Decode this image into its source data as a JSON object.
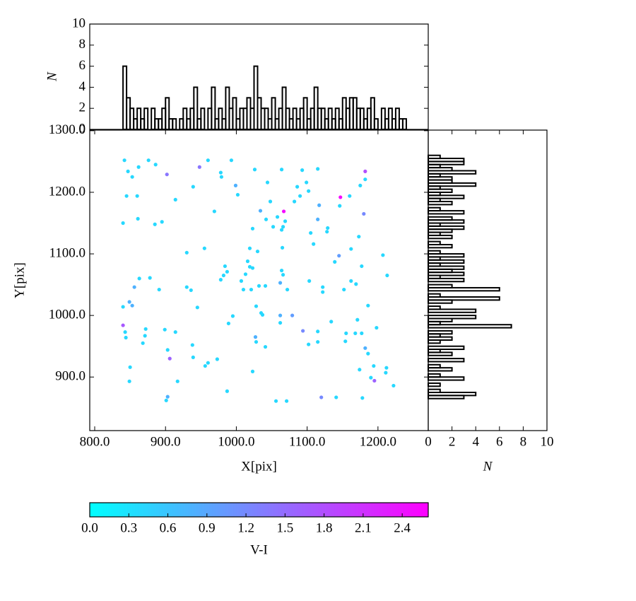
{
  "chart_data": [
    {
      "type": "scatter",
      "xlabel": "X[pix]",
      "ylabel": "Y[pix]",
      "xlim": [
        793,
        1271
      ],
      "ylim": [
        813,
        1301
      ],
      "xticks": [
        {
          "value": 800,
          "label": "800.0"
        },
        {
          "value": 900,
          "label": "900.0"
        },
        {
          "value": 1000,
          "label": "1000.0"
        },
        {
          "value": 1100,
          "label": "1100.0"
        },
        {
          "value": 1200,
          "label": "1200.0"
        }
      ],
      "yticks": [
        {
          "value": 900,
          "label": "900.0"
        },
        {
          "value": 1000,
          "label": "1000.0"
        },
        {
          "value": 1100,
          "label": "1100.0"
        },
        {
          "value": 1200,
          "label": "1200.0"
        },
        {
          "value": 1300,
          "label": "1300.0"
        }
      ],
      "x": [
        842,
        847,
        853,
        862,
        876,
        886,
        902,
        845,
        860,
        914,
        840,
        861,
        885,
        895,
        948,
        960,
        978,
        979,
        993,
        1026,
        999,
        939,
        1002,
        969,
        1044,
        1064,
        1093,
        1115,
        1086,
        1099,
        1090,
        1102,
        1048,
        1034,
        1067,
        1052,
        1069,
        1066,
        1064,
        1023,
        1042,
        1058,
        1082,
        1117,
        1147,
        1146,
        1160,
        1175,
        1182,
        1182,
        1115,
        1129,
        1128,
        1105,
        1180,
        1173,
        1109,
        955,
        930,
        1019,
        1030,
        1065,
        1162,
        1145,
        1139,
        1207,
        1213,
        1177,
        1016,
        1019,
        984,
        987,
        982,
        978,
        1013,
        1023,
        1064,
        1066,
        863,
        878,
        856,
        849,
        853,
        840,
        891,
        930,
        936,
        1007,
        1010,
        1021,
        1032,
        1041,
        1062,
        1072,
        1103,
        1122,
        1122,
        1152,
        1162,
        1169,
        945,
        1028,
        1035,
        1037,
        995,
        989,
        1062,
        1062,
        1079,
        1134,
        1171,
        1186,
        840,
        843,
        844,
        872,
        871,
        899,
        914,
        868,
        1094,
        1115,
        1155,
        1168,
        1177,
        1198,
        1027,
        1028,
        1041,
        1102,
        1115,
        1154,
        938,
        903,
        906,
        939,
        973,
        960,
        956,
        1023,
        1182,
        1186,
        1194,
        1174,
        1212,
        1211,
        1190,
        1195,
        1222,
        850,
        849,
        917,
        987,
        903,
        901,
        1056,
        1071,
        1120,
        1141,
        1178
      ],
      "y": [
        1252,
        1234,
        1225,
        1241,
        1252,
        1245,
        1229,
        1194,
        1194,
        1188,
        1150,
        1157,
        1148,
        1152,
        1241,
        1252,
        1232,
        1225,
        1252,
        1237,
        1211,
        1209,
        1196,
        1169,
        1216,
        1237,
        1236,
        1238,
        1209,
        1216,
        1194,
        1202,
        1185,
        1170,
        1169,
        1144,
        1153,
        1144,
        1139,
        1141,
        1156,
        1160,
        1185,
        1179,
        1192,
        1178,
        1194,
        1211,
        1234,
        1221,
        1156,
        1142,
        1136,
        1134,
        1165,
        1128,
        1116,
        1109,
        1102,
        1109,
        1104,
        1110,
        1108,
        1097,
        1087,
        1098,
        1065,
        1080,
        1088,
        1079,
        1080,
        1071,
        1065,
        1058,
        1067,
        1077,
        1073,
        1066,
        1060,
        1061,
        1046,
        1022,
        1016,
        1014,
        1042,
        1046,
        1041,
        1056,
        1042,
        1042,
        1048,
        1048,
        1053,
        1042,
        1056,
        1046,
        1038,
        1042,
        1056,
        1051,
        1013,
        1015,
        1004,
        1001,
        999,
        987,
        1000,
        988,
        1000,
        990,
        993,
        1016,
        984,
        973,
        964,
        978,
        967,
        977,
        973,
        955,
        975,
        974,
        971,
        971,
        971,
        980,
        965,
        957,
        949,
        953,
        957,
        958,
        952,
        944,
        930,
        932,
        929,
        923,
        918,
        909,
        947,
        938,
        918,
        912,
        915,
        907,
        899,
        894,
        886,
        916,
        893,
        893,
        877,
        868,
        862,
        861,
        861,
        867,
        867,
        866
      ],
      "c": [
        0.4,
        0.4,
        0.4,
        0.4,
        0.4,
        0.4,
        1.4,
        0.4,
        0.4,
        0.4,
        0.4,
        0.4,
        0.4,
        0.4,
        1.4,
        0.4,
        0.4,
        0.4,
        0.4,
        0.4,
        0.8,
        0.4,
        0.4,
        0.4,
        0.4,
        0.4,
        0.4,
        0.4,
        0.4,
        0.4,
        0.4,
        0.4,
        0.4,
        0.8,
        2.5,
        0.4,
        0.4,
        0.4,
        0.4,
        0.4,
        0.4,
        0.4,
        0.4,
        0.8,
        2.5,
        0.4,
        0.4,
        0.4,
        1.8,
        0.4,
        0.8,
        0.4,
        0.4,
        0.4,
        1.2,
        0.4,
        0.4,
        0.4,
        0.4,
        0.4,
        0.4,
        0.4,
        0.4,
        1.0,
        0.4,
        0.4,
        0.4,
        0.4,
        0.4,
        0.4,
        0.4,
        0.4,
        0.4,
        0.4,
        0.4,
        0.4,
        0.4,
        0.4,
        0.4,
        0.4,
        0.8,
        0.8,
        0.8,
        0.4,
        0.4,
        0.4,
        0.4,
        0.4,
        0.4,
        0.4,
        0.4,
        0.4,
        0.8,
        0.4,
        0.4,
        0.4,
        0.4,
        0.4,
        0.4,
        0.4,
        0.4,
        0.4,
        0.4,
        0.4,
        0.4,
        0.4,
        0.8,
        0.4,
        1.0,
        0.4,
        0.4,
        0.4,
        1.7,
        0.4,
        0.4,
        0.4,
        0.4,
        0.4,
        0.4,
        0.4,
        1.2,
        0.4,
        0.4,
        0.4,
        0.4,
        0.4,
        0.8,
        0.4,
        0.4,
        0.4,
        0.4,
        0.4,
        0.4,
        0.4,
        1.6,
        0.4,
        0.4,
        0.4,
        0.4,
        0.4,
        0.8,
        0.4,
        0.4,
        0.4,
        0.4,
        0.4,
        0.4,
        1.6,
        0.4,
        0.4,
        0.4,
        0.4,
        0.4,
        0.8,
        0.4,
        0.4,
        0.4,
        1.2,
        0.4,
        0.4
      ],
      "clim": [
        0,
        2.6
      ],
      "cmap": [
        "#00ffff",
        "#ff00ff"
      ],
      "colorbar_label": "V-I",
      "cticks": [
        {
          "value": 0,
          "label": "0.0"
        },
        {
          "value": 0.3,
          "label": "0.3"
        },
        {
          "value": 0.6,
          "label": "0.6"
        },
        {
          "value": 0.9,
          "label": "0.9"
        },
        {
          "value": 1.2,
          "label": "1.2"
        },
        {
          "value": 1.5,
          "label": "1.5"
        },
        {
          "value": 1.8,
          "label": "1.8"
        },
        {
          "value": 2.1,
          "label": "2.1"
        },
        {
          "value": 2.4,
          "label": "2.4"
        }
      ]
    },
    {
      "type": "histogram",
      "orientation": "vertical",
      "color": "#000000",
      "ylabel": "N",
      "xlim": [
        793,
        1271
      ],
      "ylim": [
        0,
        10
      ],
      "yticks": [
        0,
        2,
        4,
        6,
        8,
        10
      ],
      "bins": [
        840,
        845,
        850,
        855,
        860,
        865,
        870,
        875,
        880,
        885,
        890,
        895,
        900,
        905,
        910,
        915,
        920,
        925,
        930,
        935,
        940,
        945,
        950,
        955,
        960,
        965,
        970,
        975,
        980,
        985,
        990,
        995,
        1000,
        1005,
        1010,
        1015,
        1020,
        1025,
        1030,
        1035,
        1040,
        1045,
        1050,
        1055,
        1060,
        1065,
        1070,
        1075,
        1080,
        1085,
        1090,
        1095,
        1100,
        1105,
        1110,
        1115,
        1120,
        1125,
        1130,
        1135,
        1140,
        1145,
        1150,
        1155,
        1160,
        1165,
        1170,
        1175,
        1180,
        1185,
        1190,
        1195,
        1200,
        1205,
        1210,
        1215,
        1220,
        1225,
        1230,
        1235,
        1240
      ],
      "counts": [
        6,
        3,
        2,
        1,
        2,
        1,
        2,
        0,
        2,
        1,
        1,
        2,
        3,
        1,
        1,
        0,
        1,
        2,
        1,
        2,
        4,
        1,
        2,
        0,
        2,
        4,
        1,
        2,
        1,
        4,
        2,
        3,
        1,
        2,
        2,
        3,
        2,
        6,
        3,
        2,
        2,
        1,
        3,
        1,
        2,
        4,
        2,
        1,
        2,
        1,
        2,
        3,
        1,
        2,
        4,
        2,
        2,
        1,
        2,
        1,
        2,
        1,
        3,
        2,
        3,
        3,
        2,
        2,
        1,
        2,
        3,
        1,
        0,
        2,
        1,
        2,
        1,
        2,
        1,
        1
      ]
    },
    {
      "type": "histogram",
      "orientation": "horizontal",
      "color": "#000000",
      "xlabel": "N",
      "xlim": [
        0,
        10
      ],
      "ylim": [
        813,
        1301
      ],
      "xticks": [
        0,
        2,
        4,
        6,
        8,
        10
      ],
      "bins": [
        860,
        865,
        870,
        875,
        880,
        885,
        890,
        895,
        900,
        905,
        910,
        915,
        920,
        925,
        930,
        935,
        940,
        945,
        950,
        955,
        960,
        965,
        970,
        975,
        980,
        985,
        990,
        995,
        1000,
        1005,
        1010,
        1015,
        1020,
        1025,
        1030,
        1035,
        1040,
        1045,
        1050,
        1055,
        1060,
        1065,
        1070,
        1075,
        1080,
        1085,
        1090,
        1095,
        1100,
        1105,
        1110,
        1115,
        1120,
        1125,
        1130,
        1135,
        1140,
        1145,
        1150,
        1155,
        1160,
        1165,
        1170,
        1175,
        1180,
        1185,
        1190,
        1195,
        1200,
        1205,
        1210,
        1215,
        1220,
        1225,
        1230,
        1235,
        1240,
        1245,
        1250,
        1255,
        1260
      ],
      "counts": [
        0,
        3,
        4,
        1,
        0,
        1,
        0,
        3,
        1,
        0,
        2,
        1,
        0,
        3,
        0,
        2,
        1,
        3,
        0,
        1,
        2,
        1,
        2,
        0,
        7,
        1,
        2,
        4,
        0,
        4,
        1,
        0,
        2,
        6,
        1,
        0,
        6,
        2,
        0,
        3,
        1,
        3,
        2,
        3,
        1,
        3,
        1,
        3,
        1,
        0,
        2,
        1,
        0,
        2,
        1,
        2,
        3,
        1,
        3,
        2,
        0,
        3,
        1,
        0,
        2,
        1,
        3,
        1,
        2,
        1,
        4,
        2,
        2,
        1,
        4,
        2,
        1,
        3,
        3,
        1
      ]
    }
  ]
}
